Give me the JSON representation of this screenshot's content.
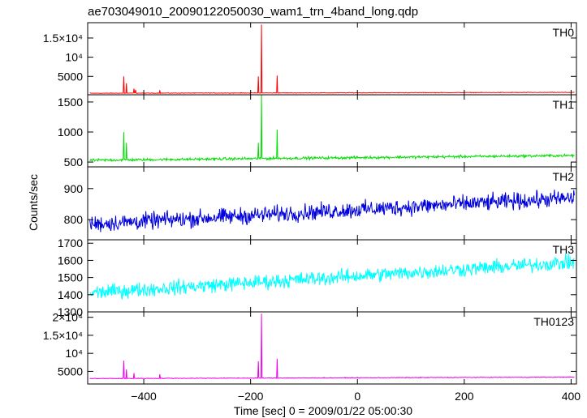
{
  "chart_data": {
    "type": "line",
    "title": "ae703049010_20090122050030_wam1_trn_4band_long.qdp",
    "xlabel": "Time [sec] 0 = 2009/01/22 05:00:30",
    "ylabel": "Counts/sec",
    "xlim": [
      -505,
      410
    ],
    "xticks": [
      {
        "v": -400,
        "label": "−400"
      },
      {
        "v": -200,
        "label": "−200"
      },
      {
        "v": 0,
        "label": "0"
      },
      {
        "v": 200,
        "label": "200"
      },
      {
        "v": 400,
        "label": "400"
      }
    ],
    "panels": [
      {
        "name": "TH0",
        "color": "#ff0000",
        "ylim": [
          200,
          19000
        ],
        "yticks": [
          {
            "v": 5000,
            "label": "5000"
          },
          {
            "v": 10000,
            "label": "10⁴"
          },
          {
            "v": 15000,
            "label": "1.5×10⁴"
          }
        ],
        "baseline": [
          600,
          820
        ],
        "noise": 60,
        "spikes": [
          {
            "x": -438,
            "y": 5000
          },
          {
            "x": -432,
            "y": 3200
          },
          {
            "x": -418,
            "y": 1800
          },
          {
            "x": -415,
            "y": 1500
          },
          {
            "x": -370,
            "y": 1400
          },
          {
            "x": -186,
            "y": 5000
          },
          {
            "x": -180,
            "y": 18500
          },
          {
            "x": -150,
            "y": 5200
          }
        ]
      },
      {
        "name": "TH1",
        "color": "#00dd00",
        "ylim": [
          420,
          1620
        ],
        "yticks": [
          {
            "v": 500,
            "label": "500"
          },
          {
            "v": 1000,
            "label": "1000"
          },
          {
            "v": 1500,
            "label": "1500"
          }
        ],
        "baseline": [
          530,
          610
        ],
        "noise": 18,
        "spikes": [
          {
            "x": -438,
            "y": 1000
          },
          {
            "x": -432,
            "y": 820
          },
          {
            "x": -186,
            "y": 820
          },
          {
            "x": -180,
            "y": 1620
          },
          {
            "x": -150,
            "y": 1040
          }
        ]
      },
      {
        "name": "TH2",
        "color": "#0000dd",
        "ylim": [
          735,
          970
        ],
        "yticks": [
          {
            "v": 800,
            "label": "800"
          },
          {
            "v": 900,
            "label": "900"
          }
        ],
        "baseline": [
          785,
          870
        ],
        "noise": 22,
        "spikes": []
      },
      {
        "name": "TH3",
        "color": "#00ffff",
        "ylim": [
          1300,
          1720
        ],
        "yticks": [
          {
            "v": 1300,
            "label": "1300"
          },
          {
            "v": 1400,
            "label": "1400"
          },
          {
            "v": 1500,
            "label": "1500"
          },
          {
            "v": 1600,
            "label": "1600"
          },
          {
            "v": 1700,
            "label": "1700"
          }
        ],
        "baseline": [
          1410,
          1590
        ],
        "noise": 35,
        "spikes": []
      },
      {
        "name": "TH0123",
        "color": "#ee00ee",
        "ylim": [
          1500,
          21500
        ],
        "yticks": [
          {
            "v": 5000,
            "label": "5000"
          },
          {
            "v": 10000,
            "label": "10⁴"
          },
          {
            "v": 15000,
            "label": "1.5×10⁴"
          },
          {
            "v": 20000,
            "label": "2×10⁴"
          }
        ],
        "baseline": [
          3000,
          3400
        ],
        "noise": 80,
        "spikes": [
          {
            "x": -438,
            "y": 8000
          },
          {
            "x": -432,
            "y": 5500
          },
          {
            "x": -418,
            "y": 4500
          },
          {
            "x": -370,
            "y": 4200
          },
          {
            "x": -186,
            "y": 7800
          },
          {
            "x": -180,
            "y": 21000
          },
          {
            "x": -150,
            "y": 8500
          }
        ]
      }
    ]
  }
}
